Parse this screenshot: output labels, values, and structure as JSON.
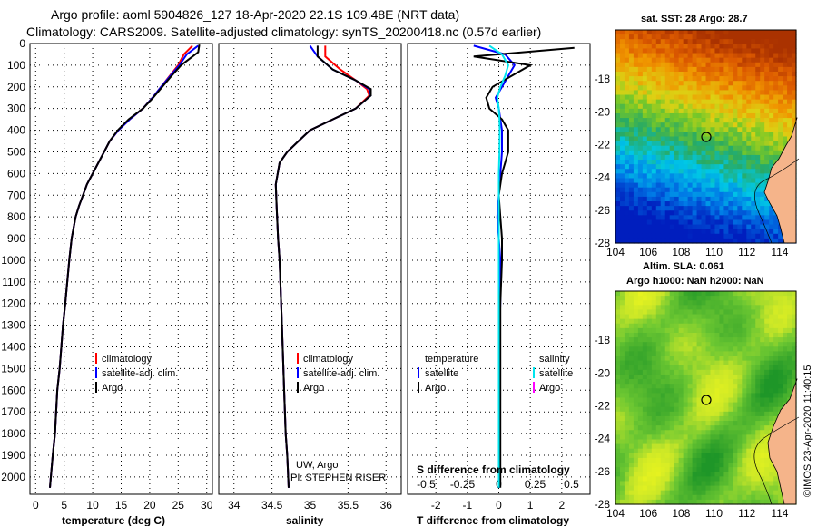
{
  "header": {
    "line1": "Argo profile: aoml 5904826_127 18-Apr-2020 22.1S 109.48E (NRT data)",
    "line2": "Climatology: CARS2009. Satellite-adjusted climatology: synTS_20200418.nc (0.57d earlier)"
  },
  "colors": {
    "climatology": "#ff0000",
    "satellite_adj": "#0000ff",
    "argo": "#000000",
    "satellite_s": "#00e5ee",
    "argo_s": "#ff00ff",
    "map1_warm": "#e07000",
    "map1_cool": "#1040d0",
    "map2_green": "#30b030",
    "map2_yellow": "#e8f020",
    "land": "#f5b48a"
  },
  "chart_data": [
    {
      "id": "temperature",
      "type": "line",
      "xlabel": "temperature (deg C)",
      "ylabel": "",
      "xlim": [
        -1,
        31
      ],
      "ylim": [
        2080,
        0
      ],
      "xticks": [
        "0",
        "5",
        "10",
        "15",
        "20",
        "25",
        "30"
      ],
      "xtick_values": [
        0,
        5,
        10,
        15,
        20,
        25,
        30
      ],
      "yticks": [
        "0",
        "100",
        "200",
        "300",
        "400",
        "500",
        "600",
        "700",
        "800",
        "900",
        "1000",
        "1100",
        "1200",
        "1300",
        "1400",
        "1500",
        "1600",
        "1700",
        "1800",
        "1900",
        "2000"
      ],
      "series": [
        {
          "name": "climatology",
          "color": "#ff0000",
          "x": [
            27.5,
            26.0,
            25.0,
            23.5,
            22.0,
            20.5,
            18.8,
            16.5,
            14.5,
            13.0,
            12.0,
            11.0,
            10.0,
            9.0,
            8.3,
            7.6,
            7.0,
            6.3,
            5.9,
            5.2,
            4.8,
            4.2,
            3.8,
            3.4,
            3.0,
            2.5
          ],
          "y": [
            10,
            50,
            100,
            150,
            200,
            250,
            300,
            350,
            400,
            450,
            500,
            550,
            600,
            650,
            700,
            750,
            800,
            900,
            1000,
            1200,
            1300,
            1500,
            1600,
            1800,
            1900,
            2050
          ]
        },
        {
          "name": "satellite-adj. clim.",
          "color": "#0000ff",
          "x": [
            28.5,
            26.5,
            25.2,
            23.6,
            22.0,
            20.5,
            18.8,
            16.5,
            14.5,
            13.0,
            12.0,
            11.0,
            10.0,
            9.0,
            8.3,
            7.6,
            7.0,
            6.3,
            5.9,
            5.2,
            4.8,
            4.2,
            3.8,
            3.4,
            3.0,
            2.5
          ],
          "y": [
            10,
            50,
            100,
            150,
            200,
            250,
            300,
            350,
            400,
            450,
            500,
            550,
            600,
            650,
            700,
            750,
            800,
            900,
            1000,
            1200,
            1300,
            1500,
            1600,
            1800,
            1900,
            2050
          ]
        },
        {
          "name": "Argo",
          "color": "#000000",
          "x": [
            28.7,
            28.5,
            25.5,
            23.8,
            22.2,
            20.6,
            18.8,
            16.3,
            14.4,
            13.0,
            12.0,
            11.0,
            10.0,
            9.0,
            8.3,
            7.6,
            7.0,
            6.3,
            5.9,
            5.2,
            4.8,
            4.2,
            3.8,
            3.4,
            3.0,
            2.5
          ],
          "y": [
            5,
            40,
            100,
            150,
            200,
            250,
            300,
            350,
            400,
            450,
            500,
            550,
            600,
            650,
            700,
            750,
            800,
            900,
            1000,
            1200,
            1300,
            1500,
            1600,
            1800,
            1900,
            2050
          ]
        }
      ],
      "legend": [
        "climatology",
        "satellite-adj. clim.",
        "Argo"
      ],
      "legend_placement": "lower-right"
    },
    {
      "id": "salinity",
      "type": "line",
      "xlabel": "salinity",
      "xlim": [
        33.8,
        36.2
      ],
      "ylim": [
        2080,
        0
      ],
      "xticks": [
        "34",
        "34.5",
        "35",
        "35.5",
        "36"
      ],
      "xtick_values": [
        34,
        34.5,
        35,
        35.5,
        36
      ],
      "series": [
        {
          "name": "climatology",
          "color": "#ff0000",
          "x": [
            35.2,
            35.2,
            35.4,
            35.6,
            35.75,
            35.78,
            35.6,
            35.3,
            35.0,
            34.85,
            34.7,
            34.6,
            34.55,
            34.56,
            34.58,
            34.6,
            34.62,
            34.64,
            34.66,
            34.68,
            34.7,
            34.72
          ],
          "y": [
            10,
            60,
            120,
            170,
            210,
            240,
            300,
            350,
            400,
            450,
            500,
            550,
            650,
            750,
            900,
            1000,
            1200,
            1400,
            1600,
            1800,
            1900,
            2050
          ]
        },
        {
          "name": "satellite-adj. clim.",
          "color": "#0000ff",
          "x": [
            35.0,
            35.1,
            35.3,
            35.6,
            35.78,
            35.8,
            35.6,
            35.3,
            35.0,
            34.85,
            34.7,
            34.6,
            34.55,
            34.56,
            34.58,
            34.6,
            34.62,
            34.64,
            34.66,
            34.68,
            34.7,
            34.72
          ],
          "y": [
            10,
            60,
            120,
            170,
            210,
            240,
            300,
            350,
            400,
            450,
            500,
            550,
            650,
            750,
            900,
            1000,
            1200,
            1400,
            1600,
            1800,
            1900,
            2050
          ]
        },
        {
          "name": "Argo",
          "color": "#000000",
          "x": [
            35.1,
            35.1,
            35.3,
            35.6,
            35.8,
            35.8,
            35.6,
            35.3,
            35.0,
            34.85,
            34.7,
            34.6,
            34.55,
            34.56,
            34.58,
            34.6,
            34.62,
            34.64,
            34.66,
            34.68,
            34.7,
            34.72
          ],
          "y": [
            10,
            60,
            120,
            170,
            210,
            240,
            300,
            350,
            400,
            450,
            500,
            550,
            650,
            750,
            900,
            1000,
            1200,
            1400,
            1600,
            1800,
            1900,
            2050
          ]
        }
      ],
      "legend": [
        "climatology",
        "satellite-adj. clim.",
        "Argo"
      ],
      "legend_placement": "lower-right",
      "annotation": [
        "UW, Argo",
        "PI: STEPHEN RISER"
      ]
    },
    {
      "id": "differences",
      "type": "line",
      "xlabel": "T difference from climatology",
      "xlabel_top": "S difference from climatology",
      "xlim": [
        -2.9,
        2.9
      ],
      "ylim": [
        2080,
        0
      ],
      "xticks": [
        "-2",
        "-1",
        "0",
        "1",
        "2"
      ],
      "xtick_values": [
        -2,
        -1,
        0,
        1,
        2
      ],
      "xticks_top": [
        "-0.5",
        "-0.25",
        "0",
        "0.25",
        "0.5"
      ],
      "series": [
        {
          "name": "temperature satellite",
          "color": "#0000ff",
          "x": [
            -0.8,
            0.2,
            0.5,
            0.3,
            0.1,
            -0.1,
            0.0,
            0.05,
            0.1,
            0.1,
            0.05,
            0.0,
            -0.05,
            0.0,
            0.05,
            0.05,
            0.0,
            0.0,
            0.0,
            0.0
          ],
          "y": [
            10,
            50,
            100,
            150,
            200,
            250,
            300,
            350,
            400,
            500,
            600,
            700,
            800,
            900,
            1000,
            1200,
            1400,
            1600,
            1800,
            2050
          ]
        },
        {
          "name": "temperature Argo",
          "color": "#000000",
          "x": [
            2.4,
            -0.8,
            1.0,
            0.4,
            -0.2,
            -0.4,
            -0.3,
            0.1,
            0.3,
            0.3,
            0.1,
            0.0,
            0.05,
            0.1,
            0.1,
            0.05,
            0.05,
            0.05,
            0.05,
            0.05
          ],
          "y": [
            20,
            60,
            100,
            150,
            200,
            250,
            300,
            350,
            400,
            500,
            600,
            700,
            800,
            900,
            1000,
            1200,
            1400,
            1600,
            1800,
            2050
          ]
        },
        {
          "name": "salinity satellite",
          "color": "#00e5ee",
          "x": [
            -0.3,
            0.1,
            0.3,
            0.2,
            0.05,
            -0.05,
            0.0,
            0.02,
            0.03,
            0.02,
            0.0,
            0.0,
            0.0,
            0.0,
            0.0,
            0.0,
            0.0,
            0.0,
            0.0,
            0.0
          ],
          "y": [
            10,
            50,
            100,
            150,
            200,
            250,
            300,
            350,
            400,
            500,
            600,
            700,
            800,
            900,
            1000,
            1200,
            1400,
            1600,
            1800,
            2050
          ]
        }
      ],
      "legend_left_title": "temperature",
      "legend_right_title": "salinity",
      "legend_left": [
        "satellite",
        "Argo"
      ],
      "legend_right": [
        "satellite",
        "Argo"
      ]
    },
    {
      "id": "map_sst",
      "type": "heatmap",
      "title": "sat. SST: 28 Argo: 28.7",
      "xticks": [
        "104",
        "106",
        "108",
        "110",
        "112",
        "114"
      ],
      "yticks": [
        "-18",
        "-20",
        "-22",
        "-24",
        "-26",
        "-28"
      ],
      "xlim": [
        104,
        115
      ],
      "ylim": [
        -28,
        -15
      ],
      "marker": {
        "lon": 109.48,
        "lat": -22.1
      }
    },
    {
      "id": "map_sla",
      "type": "heatmap",
      "title_line1": "Altim. SLA: 0.061",
      "title_line2": "Argo h1000: NaN h2000: NaN",
      "xticks": [
        "104",
        "106",
        "108",
        "110",
        "112",
        "114"
      ],
      "yticks": [
        "-18",
        "-20",
        "-22",
        "-24",
        "-26",
        "-28"
      ],
      "xlim": [
        104,
        115
      ],
      "ylim": [
        -28,
        -15
      ],
      "marker": {
        "lon": 109.48,
        "lat": -22.1
      }
    }
  ],
  "footer": {
    "credit": "©IMOS 23-Apr-2020 11:40:15"
  }
}
